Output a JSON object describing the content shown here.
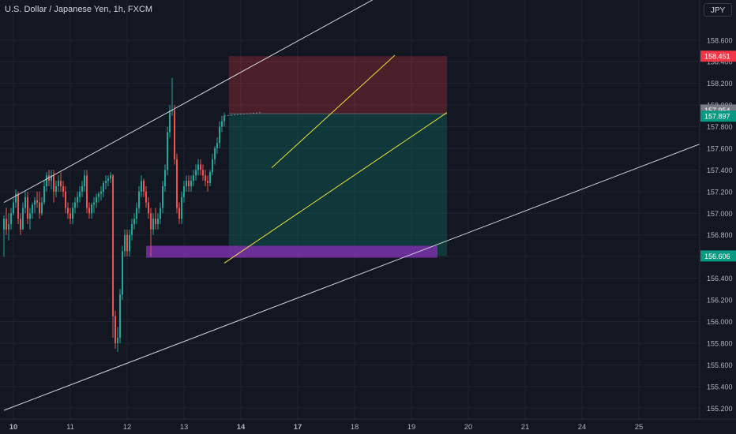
{
  "header": {
    "title": "U.S. Dollar / Japanese Yen, 1h, FXCM",
    "currency": "JPY"
  },
  "chart_data": {
    "type": "candlestick",
    "title": "U.S. Dollar / Japanese Yen, 1h, FXCM",
    "ylim": [
      155.1,
      158.97
    ],
    "y_ticks": [
      "155.200",
      "155.400",
      "155.600",
      "155.800",
      "156.000",
      "156.200",
      "156.400",
      "156.600",
      "156.800",
      "157.000",
      "157.200",
      "157.400",
      "157.600",
      "157.800",
      "158.000",
      "158.200",
      "158.400",
      "158.600"
    ],
    "x_ticks": [
      {
        "label": "10",
        "bar": 4
      },
      {
        "label": "11",
        "bar": 28
      },
      {
        "label": "12",
        "bar": 52
      },
      {
        "label": "13",
        "bar": 76
      },
      {
        "label": "14",
        "bar": 100
      },
      {
        "label": "17",
        "bar": 124
      },
      {
        "label": "18",
        "bar": 148
      },
      {
        "label": "19",
        "bar": 172
      },
      {
        "label": "20",
        "bar": 196
      },
      {
        "label": "21",
        "bar": 220
      },
      {
        "label": "24",
        "bar": 244
      },
      {
        "label": "25",
        "bar": 268
      }
    ],
    "price_labels": [
      {
        "value": "158.451",
        "color": "#f23645"
      },
      {
        "value": "157.954",
        "color": "#787b86"
      },
      {
        "value": "157.897",
        "color": "#089981"
      },
      {
        "value": "156.606",
        "color": "#089981"
      }
    ],
    "position": {
      "entry_price": 157.92,
      "stop_price": 158.451,
      "target_price": 156.606,
      "start_bar": 95,
      "end_bar": 187
    },
    "support_zone": {
      "low": 156.59,
      "high": 156.7,
      "start_bar": 60,
      "end_bar": 183,
      "color": "#7b2fa8"
    },
    "trend_lines": [
      {
        "color": "#d1d4dc",
        "points": [
          [
            0,
            157.1
          ],
          [
            158,
            159.0
          ]
        ]
      },
      {
        "color": "#d1d4dc",
        "points": [
          [
            0,
            155.18
          ],
          [
            295,
            157.65
          ]
        ]
      },
      {
        "color": "#e8e13a",
        "points": [
          [
            93,
            156.54
          ],
          [
            187,
            157.93
          ]
        ]
      },
      {
        "color": "#e8e13a",
        "points": [
          [
            113,
            157.42
          ],
          [
            165,
            158.46
          ]
        ]
      }
    ],
    "candles": [
      [
        156.85,
        156.98,
        156.6,
        156.95
      ],
      [
        156.95,
        157.05,
        156.8,
        156.85
      ],
      [
        156.85,
        157.0,
        156.75,
        156.9
      ],
      [
        156.9,
        157.05,
        156.85,
        157.0
      ],
      [
        157.0,
        157.15,
        156.98,
        157.1
      ],
      [
        157.1,
        157.22,
        157.05,
        157.18
      ],
      [
        157.18,
        157.2,
        156.9,
        156.95
      ],
      [
        156.95,
        157.0,
        156.8,
        156.85
      ],
      [
        156.85,
        157.1,
        156.85,
        157.05
      ],
      [
        157.05,
        157.2,
        157.0,
        157.15
      ],
      [
        157.15,
        157.2,
        156.9,
        156.95
      ],
      [
        156.95,
        157.05,
        156.85,
        157.0
      ],
      [
        157.0,
        157.1,
        156.95,
        157.08
      ],
      [
        157.08,
        157.15,
        157.0,
        157.12
      ],
      [
        157.12,
        157.2,
        157.05,
        157.1
      ],
      [
        157.1,
        157.2,
        156.95,
        157.0
      ],
      [
        157.0,
        157.15,
        156.98,
        157.1
      ],
      [
        157.1,
        157.3,
        157.08,
        157.25
      ],
      [
        157.25,
        157.38,
        157.2,
        157.35
      ],
      [
        157.35,
        157.4,
        157.25,
        157.3
      ],
      [
        157.3,
        157.4,
        157.22,
        157.35
      ],
      [
        157.35,
        157.4,
        157.1,
        157.2
      ],
      [
        157.2,
        157.3,
        157.15,
        157.25
      ],
      [
        157.25,
        157.35,
        157.2,
        157.3
      ],
      [
        157.3,
        157.38,
        157.2,
        157.25
      ],
      [
        157.25,
        157.3,
        157.15,
        157.2
      ],
      [
        157.2,
        157.25,
        157.0,
        157.05
      ],
      [
        157.05,
        157.1,
        156.95,
        157.0
      ],
      [
        157.0,
        157.05,
        156.9,
        156.95
      ],
      [
        156.95,
        157.1,
        156.9,
        157.05
      ],
      [
        157.05,
        157.15,
        157.0,
        157.1
      ],
      [
        157.1,
        157.2,
        157.05,
        157.15
      ],
      [
        157.15,
        157.25,
        157.1,
        157.2
      ],
      [
        157.2,
        157.3,
        157.15,
        157.25
      ],
      [
        157.25,
        157.4,
        157.2,
        157.35
      ],
      [
        157.35,
        157.4,
        157.0,
        157.05
      ],
      [
        157.05,
        157.1,
        156.95,
        157.0
      ],
      [
        157.0,
        157.1,
        156.95,
        157.08
      ],
      [
        157.08,
        157.15,
        157.0,
        157.1
      ],
      [
        157.1,
        157.18,
        157.05,
        157.15
      ],
      [
        157.15,
        157.2,
        157.1,
        157.18
      ],
      [
        157.18,
        157.25,
        157.12,
        157.2
      ],
      [
        157.2,
        157.3,
        157.15,
        157.28
      ],
      [
        157.28,
        157.35,
        157.22,
        157.3
      ],
      [
        157.3,
        157.35,
        157.25,
        157.32
      ],
      [
        157.32,
        157.38,
        157.28,
        157.35
      ],
      [
        157.35,
        157.36,
        155.85,
        156.05
      ],
      [
        156.05,
        156.1,
        155.75,
        155.8
      ],
      [
        155.8,
        155.95,
        155.72,
        155.85
      ],
      [
        155.85,
        156.3,
        155.8,
        156.25
      ],
      [
        156.25,
        156.7,
        156.2,
        156.65
      ],
      [
        156.65,
        156.85,
        156.6,
        156.8
      ],
      [
        156.8,
        156.85,
        156.6,
        156.65
      ],
      [
        156.65,
        156.85,
        156.6,
        156.8
      ],
      [
        156.8,
        156.95,
        156.75,
        156.9
      ],
      [
        156.9,
        157.0,
        156.85,
        156.95
      ],
      [
        156.95,
        157.1,
        156.9,
        157.05
      ],
      [
        157.05,
        157.25,
        157.0,
        157.2
      ],
      [
        157.2,
        157.35,
        157.15,
        157.3
      ],
      [
        157.3,
        157.32,
        157.15,
        157.2
      ],
      [
        157.2,
        157.25,
        157.05,
        157.1
      ],
      [
        157.1,
        157.15,
        156.95,
        157.0
      ],
      [
        157.0,
        157.05,
        156.6,
        156.85
      ],
      [
        156.85,
        157.0,
        156.8,
        156.95
      ],
      [
        156.95,
        157.05,
        156.85,
        156.9
      ],
      [
        156.9,
        157.0,
        156.85,
        156.95
      ],
      [
        156.95,
        157.1,
        156.9,
        157.05
      ],
      [
        157.05,
        157.3,
        157.0,
        157.25
      ],
      [
        157.25,
        157.45,
        157.2,
        157.4
      ],
      [
        157.4,
        157.8,
        157.35,
        157.75
      ],
      [
        157.75,
        158.0,
        157.7,
        157.95
      ],
      [
        157.95,
        158.25,
        157.9,
        157.95
      ],
      [
        157.95,
        158.0,
        157.45,
        157.5
      ],
      [
        157.5,
        157.55,
        157.0,
        157.05
      ],
      [
        157.05,
        157.1,
        156.9,
        156.95
      ],
      [
        156.95,
        157.2,
        156.9,
        157.15
      ],
      [
        157.15,
        157.3,
        157.1,
        157.25
      ],
      [
        157.25,
        157.35,
        157.2,
        157.3
      ],
      [
        157.3,
        157.35,
        157.2,
        157.25
      ],
      [
        157.25,
        157.35,
        157.2,
        157.3
      ],
      [
        157.3,
        157.4,
        157.25,
        157.35
      ],
      [
        157.35,
        157.45,
        157.3,
        157.4
      ],
      [
        157.4,
        157.5,
        157.35,
        157.45
      ],
      [
        157.45,
        157.5,
        157.35,
        157.4
      ],
      [
        157.4,
        157.45,
        157.3,
        157.35
      ],
      [
        157.35,
        157.4,
        157.25,
        157.3
      ],
      [
        157.3,
        157.35,
        157.2,
        157.28
      ],
      [
        157.28,
        157.4,
        157.25,
        157.38
      ],
      [
        157.38,
        157.55,
        157.35,
        157.5
      ],
      [
        157.5,
        157.62,
        157.45,
        157.6
      ],
      [
        157.6,
        157.7,
        157.55,
        157.65
      ],
      [
        157.65,
        157.85,
        157.6,
        157.8
      ],
      [
        157.8,
        157.9,
        157.75,
        157.85
      ],
      [
        157.85,
        157.93,
        157.8,
        157.9
      ]
    ]
  }
}
